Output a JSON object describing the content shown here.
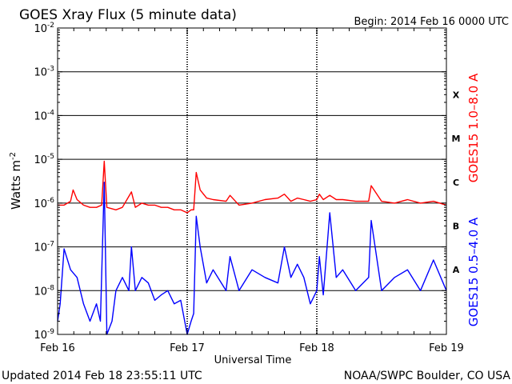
{
  "chart_data": {
    "type": "line",
    "title": "GOES Xray Flux (5 minute data)",
    "begin_label": "Begin:  2014 Feb 16 0000 UTC",
    "xlabel": "Universal Time",
    "ylabel": "Watts m",
    "ylabel_sup": "-2",
    "y_scale": "log",
    "ylim": [
      1e-09,
      0.01
    ],
    "xlim_days": [
      0,
      3
    ],
    "y_ticks": [
      {
        "exp": -2,
        "value": 0.01
      },
      {
        "exp": -3,
        "value": 0.001
      },
      {
        "exp": -4,
        "value": 0.0001
      },
      {
        "exp": -5,
        "value": 1e-05
      },
      {
        "exp": -6,
        "value": 1e-06
      },
      {
        "exp": -7,
        "value": 1e-07
      },
      {
        "exp": -8,
        "value": 1e-08
      },
      {
        "exp": -9,
        "value": 1e-09
      }
    ],
    "y_tick_base": "10",
    "x_ticks": [
      {
        "label": "Feb 16",
        "day": 0
      },
      {
        "label": "Feb 17",
        "day": 1
      },
      {
        "label": "Feb 18",
        "day": 2
      },
      {
        "label": "Feb 19",
        "day": 3
      }
    ],
    "flare_classes": [
      {
        "label": "X",
        "value": 0.0003
      },
      {
        "label": "M",
        "value": 3e-05
      },
      {
        "label": "C",
        "value": 3e-06
      },
      {
        "label": "B",
        "value": 3e-07
      },
      {
        "label": "A",
        "value": 3e-08
      }
    ],
    "grid_lines": [
      0.001,
      0.0001,
      1e-05,
      1e-06,
      1e-07,
      1e-08
    ],
    "series": [
      {
        "name": "GOES15 1.0–8.0 A",
        "color": "#ff0000",
        "x": [
          0,
          0.05,
          0.1,
          0.12,
          0.15,
          0.2,
          0.25,
          0.3,
          0.34,
          0.36,
          0.38,
          0.45,
          0.5,
          0.57,
          0.6,
          0.65,
          0.7,
          0.75,
          0.8,
          0.85,
          0.9,
          0.95,
          1.0,
          1.03,
          1.05,
          1.07,
          1.1,
          1.15,
          1.2,
          1.3,
          1.33,
          1.4,
          1.5,
          1.6,
          1.7,
          1.75,
          1.8,
          1.85,
          1.9,
          1.95,
          2.0,
          2.02,
          2.05,
          2.1,
          2.15,
          2.2,
          2.3,
          2.4,
          2.42,
          2.5,
          2.6,
          2.7,
          2.8,
          2.9,
          3.0
        ],
        "y": [
          9e-07,
          9e-07,
          1.1e-06,
          2e-06,
          1.2e-06,
          9e-07,
          8e-07,
          8e-07,
          9e-07,
          9e-06,
          8e-07,
          7e-07,
          8e-07,
          1.8e-06,
          8e-07,
          1e-06,
          9e-07,
          9e-07,
          8e-07,
          8e-07,
          7e-07,
          7e-07,
          6e-07,
          7e-07,
          7e-07,
          5e-06,
          2e-06,
          1.3e-06,
          1.2e-06,
          1.1e-06,
          1.5e-06,
          9e-07,
          1e-06,
          1.2e-06,
          1.3e-06,
          1.6e-06,
          1.1e-06,
          1.3e-06,
          1.2e-06,
          1.1e-06,
          1.2e-06,
          1.6e-06,
          1.2e-06,
          1.5e-06,
          1.2e-06,
          1.2e-06,
          1.1e-06,
          1.1e-06,
          2.5e-06,
          1.1e-06,
          1e-06,
          1.2e-06,
          1e-06,
          1.1e-06,
          9e-07
        ]
      },
      {
        "name": "GOES15 0.5–4.0 A",
        "color": "#0000ff",
        "x": [
          0,
          0.02,
          0.05,
          0.1,
          0.15,
          0.2,
          0.25,
          0.3,
          0.33,
          0.36,
          0.38,
          0.42,
          0.45,
          0.5,
          0.55,
          0.57,
          0.6,
          0.65,
          0.7,
          0.75,
          0.8,
          0.85,
          0.9,
          0.95,
          1.0,
          1.03,
          1.05,
          1.07,
          1.1,
          1.15,
          1.2,
          1.3,
          1.33,
          1.4,
          1.5,
          1.6,
          1.7,
          1.75,
          1.8,
          1.85,
          1.9,
          1.95,
          2.0,
          2.02,
          2.05,
          2.1,
          2.15,
          2.2,
          2.3,
          2.4,
          2.42,
          2.5,
          2.6,
          2.7,
          2.8,
          2.9,
          3.0
        ],
        "y": [
          2e-09,
          5e-09,
          9e-08,
          3e-08,
          2e-08,
          5e-09,
          2e-09,
          5e-09,
          2e-09,
          3e-06,
          1e-09,
          2e-09,
          1e-08,
          2e-08,
          1e-08,
          1e-07,
          1e-08,
          2e-08,
          1.5e-08,
          6e-09,
          8e-09,
          1e-08,
          5e-09,
          6e-09,
          1e-09,
          2e-09,
          3e-09,
          5e-07,
          1e-07,
          1.5e-08,
          3e-08,
          1e-08,
          6e-08,
          1e-08,
          3e-08,
          2e-08,
          1.5e-08,
          1e-07,
          2e-08,
          4e-08,
          2e-08,
          5e-09,
          1e-08,
          6e-08,
          8e-09,
          6e-07,
          2e-08,
          3e-08,
          1e-08,
          2e-08,
          4e-07,
          1e-08,
          2e-08,
          3e-08,
          1e-08,
          5e-08,
          1e-08
        ]
      }
    ]
  },
  "footer": {
    "updated": "Updated 2014 Feb 18 23:55:11 UTC",
    "credit": "NOAA/SWPC Boulder, CO USA"
  }
}
